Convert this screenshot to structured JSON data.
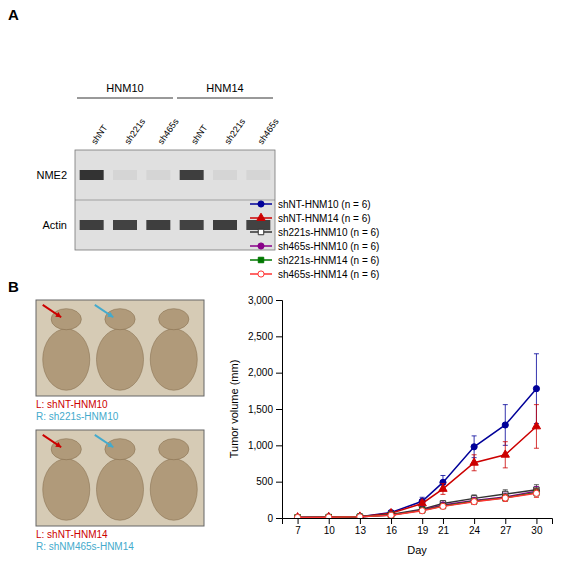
{
  "chart_data": [
    {
      "type": "heatmap",
      "title": "A",
      "group_labels": [
        "HNM10",
        "HNM14"
      ],
      "categories": [
        "shNT",
        "sh221s",
        "sh465s",
        "shNT",
        "sh221s",
        "sh465s"
      ],
      "series": [
        {
          "name": "NME2",
          "values": [
            0.88,
            0.05,
            0.05,
            0.82,
            0.05,
            0.05
          ]
        },
        {
          "name": "Actin",
          "values": [
            0.82,
            0.8,
            0.82,
            0.8,
            0.82,
            0.8
          ]
        }
      ],
      "color": "#1a1a1a"
    },
    {
      "type": "line",
      "title": "B",
      "x": [
        7,
        10,
        13,
        16,
        19,
        21,
        24,
        27,
        30
      ],
      "series": [
        {
          "name": "shNT-HNM10 (n = 6)",
          "color": "#000099",
          "marker": "circle",
          "values": [
            8,
            12,
            18,
            75,
            230,
            490,
            980,
            1280,
            1780
          ],
          "errors": [
            3,
            5,
            8,
            25,
            55,
            95,
            150,
            280,
            480
          ]
        },
        {
          "name": "shNT-HNM14 (n = 6)",
          "color": "#CC0000",
          "marker": "triangle",
          "values": [
            8,
            12,
            18,
            65,
            200,
            400,
            760,
            870,
            1260
          ],
          "errors": [
            3,
            5,
            8,
            22,
            45,
            75,
            110,
            180,
            300
          ]
        },
        {
          "name": "sh221s-HNM10 (n = 6)",
          "color": "#333333",
          "marker": "square-open",
          "values": [
            8,
            12,
            18,
            48,
            120,
            200,
            270,
            330,
            390
          ],
          "errors": [
            3,
            5,
            7,
            13,
            28,
            38,
            48,
            58,
            68
          ]
        },
        {
          "name": "sh465s-HNM10 (n = 6)",
          "color": "#880088",
          "marker": "circle",
          "values": [
            8,
            12,
            16,
            42,
            110,
            180,
            240,
            290,
            370
          ],
          "errors": [
            3,
            5,
            7,
            11,
            23,
            33,
            43,
            53,
            63
          ]
        },
        {
          "name": "sh221s-HNM14 (n = 6)",
          "color": "#007700",
          "marker": "square",
          "values": [
            8,
            12,
            16,
            40,
            105,
            165,
            230,
            280,
            350
          ],
          "errors": [
            3,
            5,
            7,
            11,
            20,
            30,
            40,
            50,
            60
          ]
        },
        {
          "name": "sh465s-HNM14 (n = 6)",
          "color": "#FF3333",
          "marker": "circle-open",
          "values": [
            8,
            12,
            16,
            38,
            100,
            160,
            225,
            275,
            340
          ],
          "errors": [
            3,
            5,
            7,
            11,
            20,
            28,
            40,
            48,
            58
          ]
        }
      ],
      "xlim": [
        5.5,
        31.5
      ],
      "xticks": [
        7,
        10,
        13,
        16,
        19,
        21,
        24,
        27,
        30
      ],
      "ylim": [
        0,
        3000
      ],
      "yticks": [
        0,
        500,
        {
          "value": 1000,
          "label": "1,000"
        },
        {
          "value": 1500,
          "label": "1,500"
        },
        {
          "value": 2000,
          "label": "2,000"
        },
        {
          "value": 2500,
          "label": "2,500"
        },
        {
          "value": 3000,
          "label": "3,000"
        }
      ],
      "x_label": "Day",
      "y_label": "Tumor volume (mm)",
      "legend": "upper left",
      "annotations": [
        {
          "text": "L: shNT-HNM10",
          "color": "#CC0000"
        },
        {
          "text": "R: sh221s-HNM10",
          "color": "#44AACC"
        },
        {
          "text": "L: shNT-HNM14",
          "color": "#CC0000"
        },
        {
          "text": "R: shNM465s-HNM14",
          "color": "#44AACC"
        }
      ]
    }
  ]
}
